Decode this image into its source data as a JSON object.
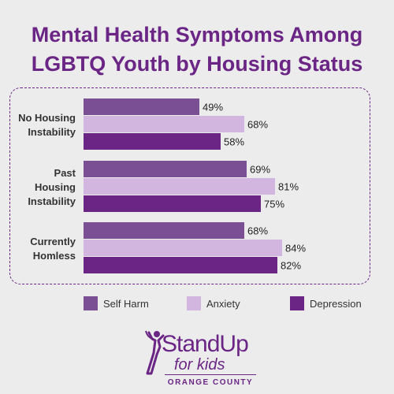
{
  "chart_data": {
    "type": "bar",
    "orientation": "horizontal",
    "title_lines": [
      "Mental Health Symptoms Among",
      "LGBTQ Youth by Housing Status"
    ],
    "categories": [
      "No Housing Instability",
      "Past Housing Instability",
      "Currently Homless"
    ],
    "category_label_lines": [
      [
        "No Housing",
        "Instability"
      ],
      [
        "Past",
        "Housing",
        "Instability"
      ],
      [
        "Currently",
        "Homless"
      ]
    ],
    "series": [
      {
        "name": "Self Harm",
        "color": "#7b4f93",
        "values": [
          49,
          69,
          68
        ]
      },
      {
        "name": "Anxiety",
        "color": "#d3b6e0",
        "values": [
          68,
          81,
          84
        ]
      },
      {
        "name": "Depression",
        "color": "#6a2585",
        "values": [
          58,
          75,
          82
        ]
      }
    ],
    "value_suffix": "%",
    "xlim": [
      0,
      100
    ],
    "grid": false,
    "legend_position": "bottom"
  },
  "logo": {
    "line1": "StandUp",
    "line2": "for kids",
    "line3": "ORANGE COUNTY"
  },
  "colors": {
    "title": "#6a2585",
    "background": "#ececec",
    "frame": "#6a2585"
  }
}
